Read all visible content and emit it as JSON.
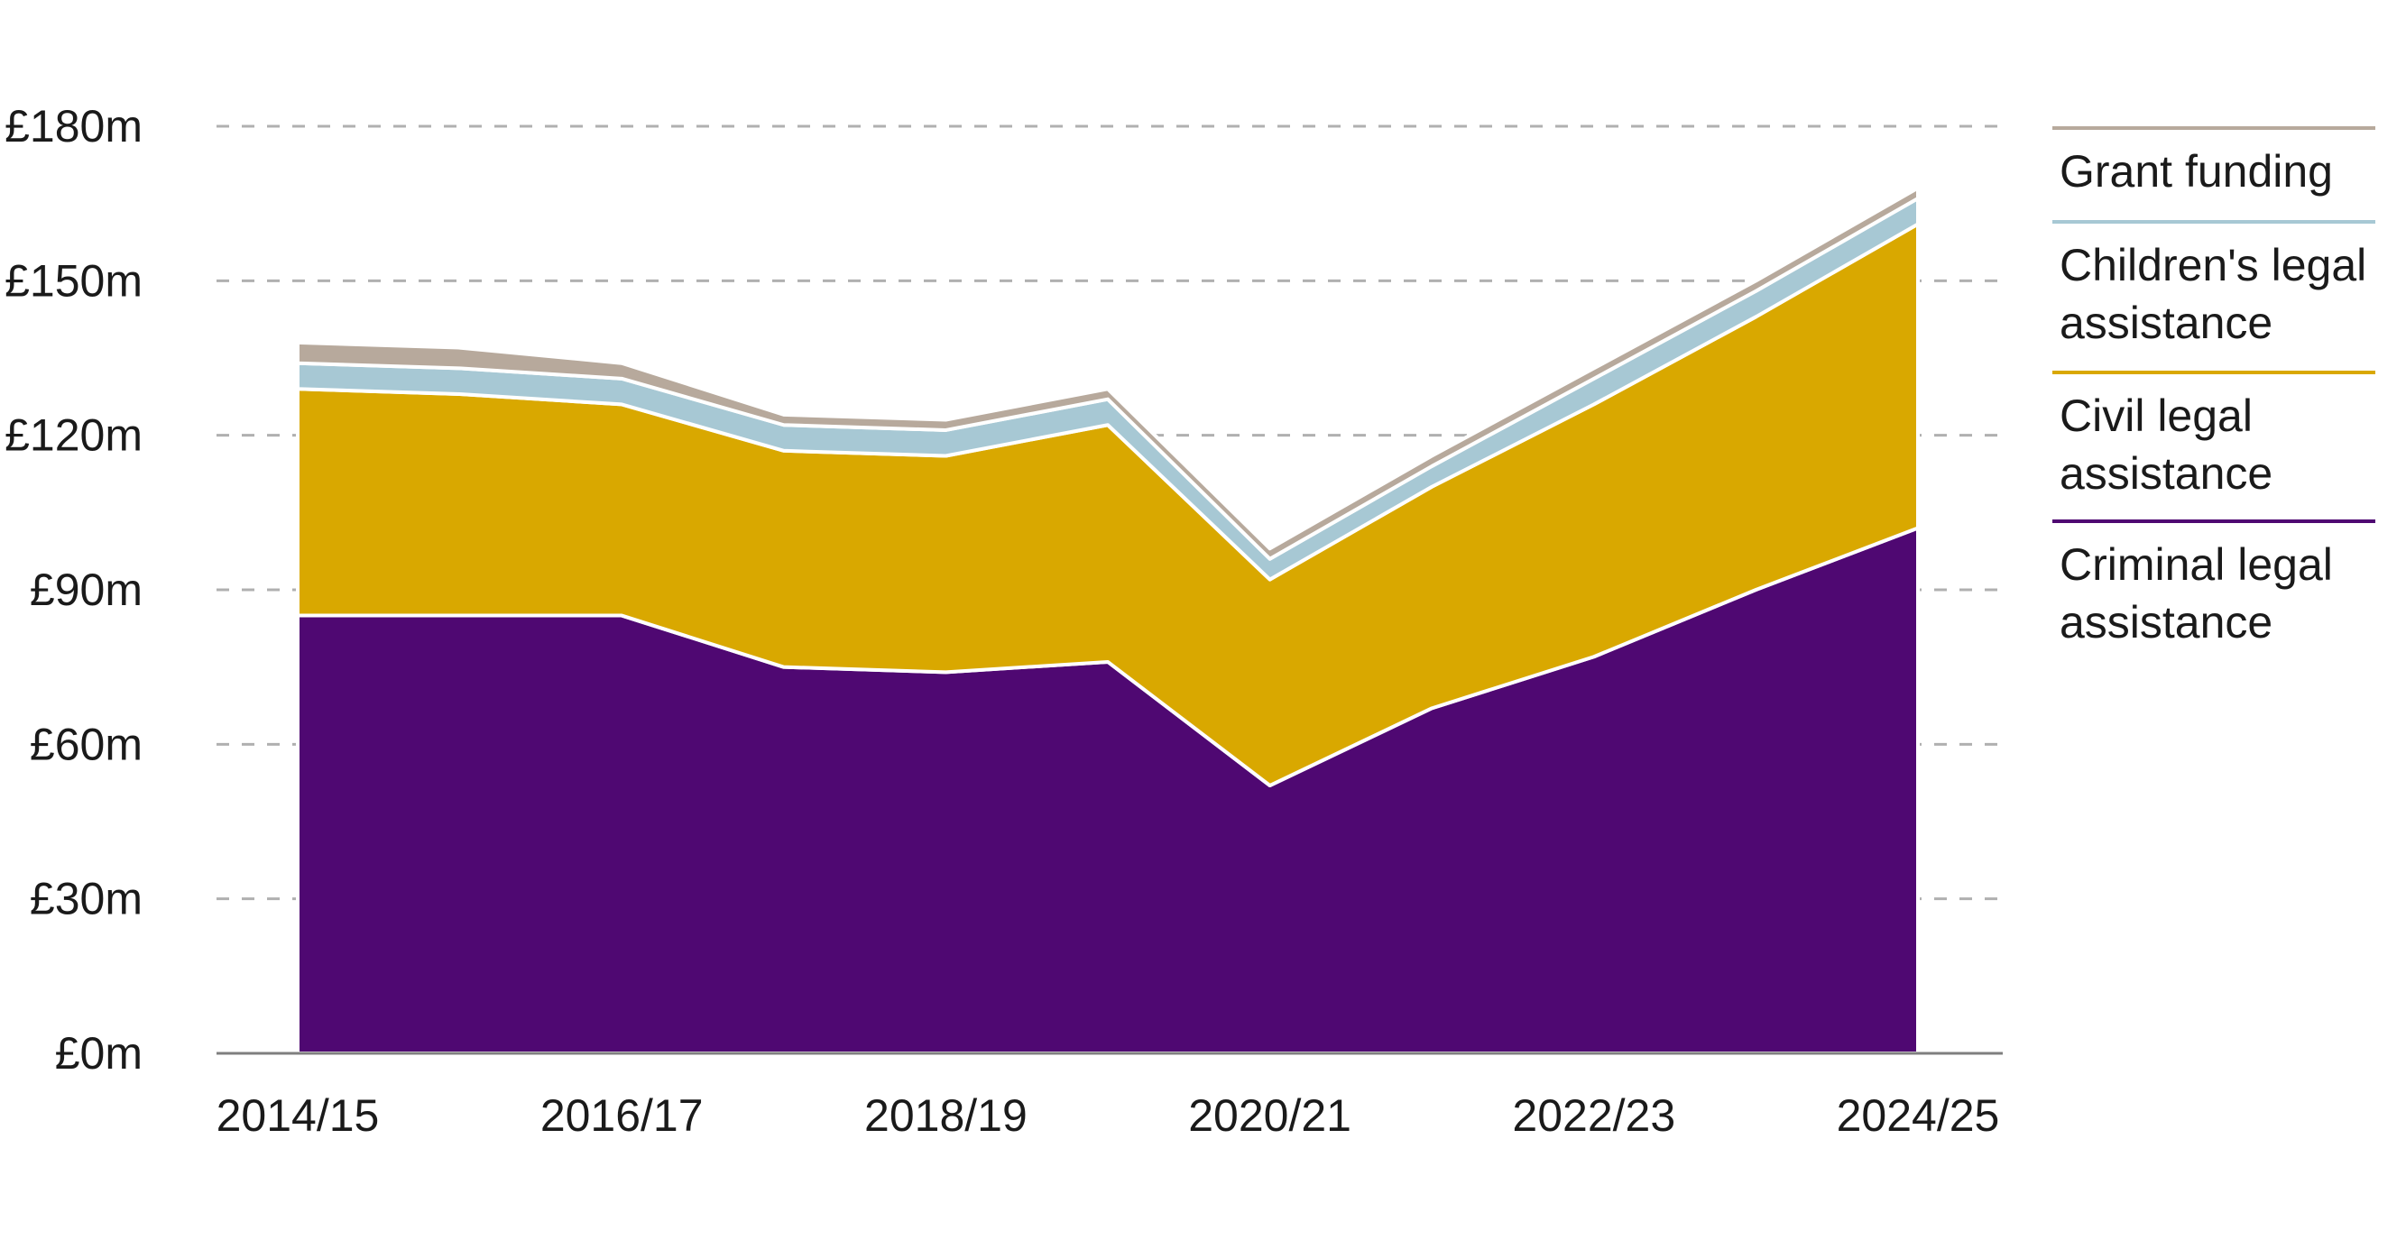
{
  "chart_data": {
    "type": "area",
    "stacked": true,
    "title": "",
    "xlabel": "",
    "ylabel": "",
    "x": [
      "2014/15",
      "2015/16",
      "2016/17",
      "2017/18",
      "2018/19",
      "2019/20",
      "2020/21",
      "2021/22",
      "2022/23",
      "2023/24",
      "2024/25"
    ],
    "x_tick_labels": [
      "2014/15",
      "2016/17",
      "2018/19",
      "2020/21",
      "2022/23",
      "2024/25"
    ],
    "ylim": [
      0,
      180
    ],
    "y_ticks": [
      0,
      30,
      60,
      90,
      120,
      150,
      180
    ],
    "y_tick_labels": [
      "£0m",
      "£30m",
      "£60m",
      "£90m",
      "£120m",
      "£150m",
      "£180m"
    ],
    "grid": true,
    "legend_position": "right",
    "series": [
      {
        "name": "Criminal legal assistance",
        "color": "#4f0872",
        "values": [
          85,
          85,
          85,
          75,
          74,
          76,
          52,
          67,
          77,
          90,
          102
        ]
      },
      {
        "name": "Civil legal assistance",
        "color": "#d9a800",
        "values": [
          44,
          43,
          41,
          42,
          42,
          46,
          40,
          43,
          49,
          53,
          59
        ]
      },
      {
        "name": "Children's legal assistance",
        "color": "#a7c8d4",
        "values": [
          5,
          5,
          5,
          5,
          5,
          5,
          4,
          4,
          5,
          5,
          5
        ]
      },
      {
        "name": "Grant funding",
        "color": "#b7a99c",
        "values": [
          4,
          4,
          3,
          2,
          2,
          2,
          2,
          2,
          2,
          2,
          2
        ]
      }
    ],
    "legend": [
      {
        "lines": [
          "Grant funding"
        ],
        "color": "#b7a99c"
      },
      {
        "lines": [
          "Children's legal",
          "assistance"
        ],
        "color": "#a7c8d4"
      },
      {
        "lines": [
          "Civil legal",
          "assistance"
        ],
        "color": "#d9a800"
      },
      {
        "lines": [
          "Criminal legal",
          "assistance"
        ],
        "color": "#4f0872"
      }
    ]
  }
}
